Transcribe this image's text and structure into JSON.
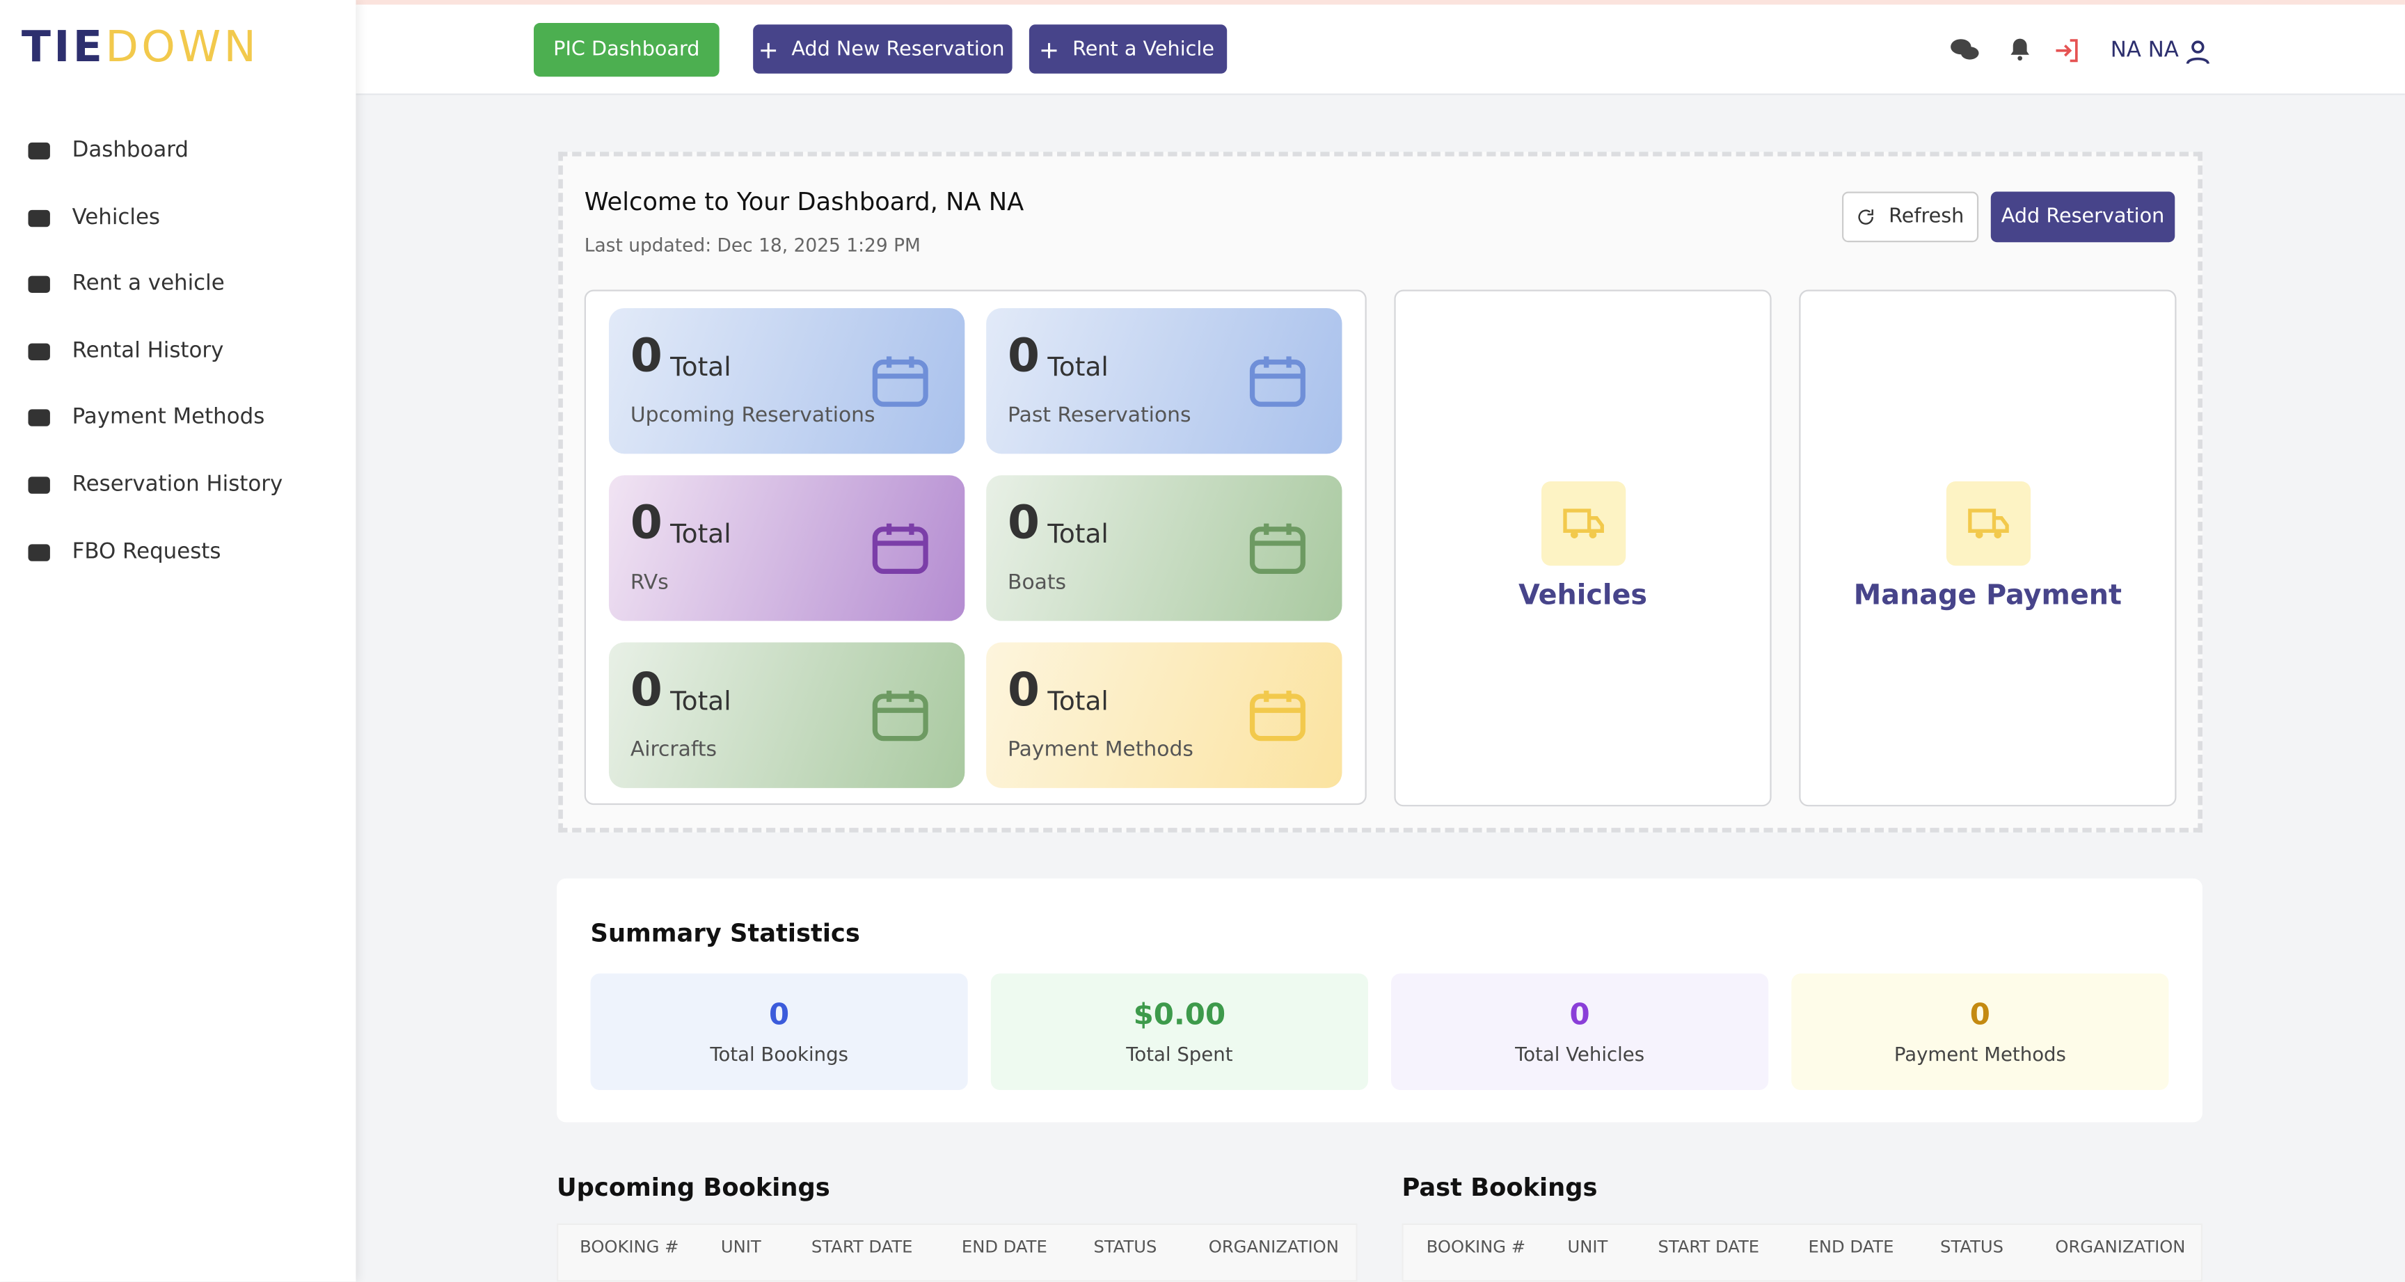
{
  "brand": {
    "part1": "TIE",
    "part2": "DOWN"
  },
  "sidebar": [
    "Dashboard",
    "Vehicles",
    "Rent a vehicle",
    "Rental History",
    "Payment Methods",
    "Reservation History",
    "FBO Requests"
  ],
  "topbar": {
    "pic": "PIC Dashboard",
    "add_reservation": "Add New Reservation",
    "rent": "Rent a Vehicle",
    "user": "NA NA"
  },
  "welcome": {
    "title": "Welcome to Your Dashboard, NA NA",
    "updated": "Last updated: Dec 18, 2025 1:29 PM",
    "refresh": "Refresh",
    "add": "Add Reservation"
  },
  "cards": [
    {
      "count": 0,
      "unit": "Total",
      "label": "Upcoming Reservations"
    },
    {
      "count": 0,
      "unit": "Total",
      "label": "Past Reservations"
    },
    {
      "count": 0,
      "unit": "Total",
      "label": "RVs"
    },
    {
      "count": 0,
      "unit": "Total",
      "label": "Boats"
    },
    {
      "count": 0,
      "unit": "Total",
      "label": "Aircrafts"
    },
    {
      "count": 0,
      "unit": "Total",
      "label": "Payment Methods"
    }
  ],
  "tiles": [
    "Vehicles",
    "Manage Payment"
  ],
  "summary": {
    "title": "Summary Statistics",
    "items": [
      {
        "value": "0",
        "label": "Total Bookings"
      },
      {
        "value": "$0.00",
        "label": "Total Spent"
      },
      {
        "value": "0",
        "label": "Total Vehicles"
      },
      {
        "value": "0",
        "label": "Payment Methods"
      }
    ]
  },
  "tables": [
    {
      "title": "Upcoming Bookings",
      "columns": [
        "BOOKING #",
        "UNIT",
        "START DATE",
        "END DATE",
        "STATUS",
        "ORGANIZATION"
      ]
    },
    {
      "title": "Past Bookings",
      "columns": [
        "BOOKING #",
        "UNIT",
        "START DATE",
        "END DATE",
        "STATUS",
        "ORGANIZATION"
      ]
    }
  ]
}
